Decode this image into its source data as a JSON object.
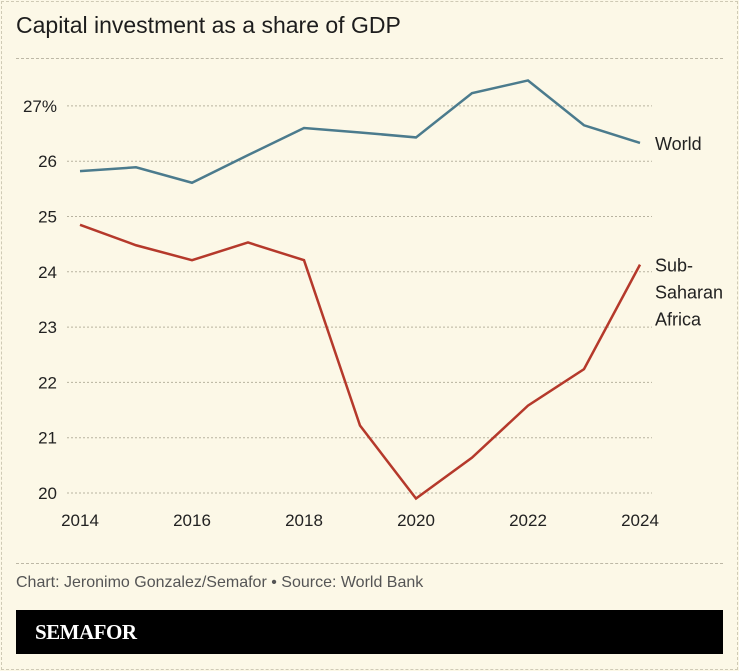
{
  "chart_data": {
    "type": "line",
    "title": "Capital investment as a share of GDP",
    "xlabel": "",
    "ylabel": "",
    "x": [
      2014,
      2015,
      2016,
      2017,
      2018,
      2019,
      2020,
      2021,
      2022,
      2023,
      2024
    ],
    "xlim": [
      2014,
      2024
    ],
    "ylim": [
      20,
      27.6
    ],
    "x_ticks": [
      "2014",
      "2016",
      "2018",
      "2020",
      "2022",
      "2024"
    ],
    "y_ticks": [
      "20",
      "21",
      "22",
      "23",
      "24",
      "25",
      "26",
      "27%"
    ],
    "grid": "horizontal dotted",
    "legend": "direct labels at line ends (right)",
    "series": [
      {
        "name": "World",
        "color": "#4b7b8d",
        "values": [
          25.82,
          25.89,
          25.61,
          26.11,
          26.6,
          26.52,
          26.43,
          27.23,
          27.46,
          26.65,
          26.33
        ]
      },
      {
        "name": "Sub-Saharan Africa",
        "label_lines": [
          "Sub-",
          "Saharan",
          "Africa"
        ],
        "color": "#b5392b",
        "values": [
          24.85,
          24.48,
          24.21,
          24.53,
          24.21,
          21.22,
          19.9,
          20.64,
          21.58,
          22.24,
          24.13
        ]
      }
    ]
  },
  "footer": {
    "credit": "Chart: Jeronimo Gonzalez/Semafor • Source: World Bank",
    "brand": "SEMAFOR"
  }
}
